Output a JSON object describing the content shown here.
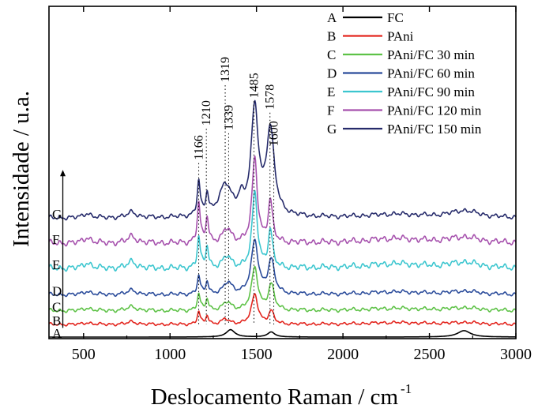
{
  "chart_data": {
    "type": "line",
    "title": "",
    "xlabel": "Deslocamento Raman / cm",
    "xlabel_superscript": "-1",
    "ylabel": "Intensidade / u.a.",
    "xlim": [
      300,
      3000
    ],
    "ylim": [
      0,
      13
    ],
    "x_ticks": [
      500,
      1000,
      1500,
      2000,
      2500,
      3000
    ],
    "grid": false,
    "legend_position": "top-right",
    "peak_labels": [
      {
        "x": 1166,
        "text": "1166",
        "line_top": 7.6
      },
      {
        "x": 1210,
        "text": "1210",
        "line_top": 9.1
      },
      {
        "x": 1319,
        "text": "1319",
        "line_top": 11.0
      },
      {
        "x": 1339,
        "text": "1339",
        "line_top": 8.9
      },
      {
        "x": 1485,
        "text": "1485",
        "line_top": 10.3
      },
      {
        "x": 1578,
        "text": "1578",
        "line_top": 9.8
      },
      {
        "x": 1600,
        "text": "1600",
        "line_top": 8.2
      }
    ],
    "arrow": {
      "x": 380,
      "from": 0.4,
      "to": 7.3
    },
    "series": [
      {
        "letter": "A",
        "name": "FC",
        "color": "#000000",
        "offset": 0.0,
        "wiggle": 0.0,
        "peaks": [
          {
            "x": 1350,
            "amp": 0.32,
            "width": 30
          },
          {
            "x": 1585,
            "amp": 0.22,
            "width": 25
          },
          {
            "x": 2700,
            "amp": 0.28,
            "width": 45
          }
        ]
      },
      {
        "letter": "B",
        "name": "PAni",
        "color": "#e3261f",
        "offset": 0.55,
        "wiggle": 0.04,
        "peaks": [
          {
            "x": 520,
            "amp": 0.08,
            "width": 25
          },
          {
            "x": 780,
            "amp": 0.12,
            "width": 30
          },
          {
            "x": 1166,
            "amp": 0.55,
            "width": 10
          },
          {
            "x": 1215,
            "amp": 0.38,
            "width": 10
          },
          {
            "x": 1320,
            "amp": 0.22,
            "width": 25
          },
          {
            "x": 1490,
            "amp": 1.3,
            "width": 22
          },
          {
            "x": 1585,
            "amp": 0.55,
            "width": 18
          },
          {
            "x": 2300,
            "amp": 0.08,
            "width": 200
          },
          {
            "x": 2700,
            "amp": 0.08,
            "width": 100
          }
        ]
      },
      {
        "letter": "C",
        "name": "PAni/FC 30 min",
        "color": "#5ec247",
        "offset": 1.15,
        "wiggle": 0.05,
        "peaks": [
          {
            "x": 520,
            "amp": 0.12,
            "width": 25
          },
          {
            "x": 780,
            "amp": 0.18,
            "width": 30
          },
          {
            "x": 1166,
            "amp": 0.72,
            "width": 10
          },
          {
            "x": 1215,
            "amp": 0.5,
            "width": 10
          },
          {
            "x": 1330,
            "amp": 0.35,
            "width": 28
          },
          {
            "x": 1490,
            "amp": 1.85,
            "width": 22
          },
          {
            "x": 1585,
            "amp": 1.1,
            "width": 20
          },
          {
            "x": 2300,
            "amp": 0.1,
            "width": 200
          },
          {
            "x": 2700,
            "amp": 0.12,
            "width": 100
          }
        ]
      },
      {
        "letter": "D",
        "name": "PAni/FC 60 min",
        "color": "#2b4c9b",
        "offset": 1.85,
        "wiggle": 0.05,
        "peaks": [
          {
            "x": 520,
            "amp": 0.15,
            "width": 25
          },
          {
            "x": 780,
            "amp": 0.2,
            "width": 30
          },
          {
            "x": 1166,
            "amp": 0.8,
            "width": 10
          },
          {
            "x": 1215,
            "amp": 0.55,
            "width": 10
          },
          {
            "x": 1335,
            "amp": 0.5,
            "width": 30
          },
          {
            "x": 1490,
            "amp": 2.3,
            "width": 24
          },
          {
            "x": 1585,
            "amp": 1.45,
            "width": 22
          },
          {
            "x": 2300,
            "amp": 0.12,
            "width": 200
          },
          {
            "x": 2700,
            "amp": 0.14,
            "width": 100
          }
        ]
      },
      {
        "letter": "E",
        "name": "PAni/FC 90 min",
        "color": "#3cc6cf",
        "offset": 3.0,
        "wiggle": 0.08,
        "peaks": [
          {
            "x": 520,
            "amp": 0.25,
            "width": 25
          },
          {
            "x": 780,
            "amp": 0.3,
            "width": 30
          },
          {
            "x": 1166,
            "amp": 1.35,
            "width": 10
          },
          {
            "x": 1215,
            "amp": 0.95,
            "width": 10
          },
          {
            "x": 1330,
            "amp": 0.5,
            "width": 28
          },
          {
            "x": 1490,
            "amp": 3.3,
            "width": 18
          },
          {
            "x": 1580,
            "amp": 1.6,
            "width": 15
          },
          {
            "x": 2300,
            "amp": 0.2,
            "width": 200
          },
          {
            "x": 2700,
            "amp": 0.25,
            "width": 100
          }
        ]
      },
      {
        "letter": "F",
        "name": "PAni/FC 120 min",
        "color": "#a651ad",
        "offset": 4.1,
        "wiggle": 0.08,
        "peaks": [
          {
            "x": 520,
            "amp": 0.25,
            "width": 25
          },
          {
            "x": 780,
            "amp": 0.3,
            "width": 30
          },
          {
            "x": 1166,
            "amp": 1.75,
            "width": 10
          },
          {
            "x": 1215,
            "amp": 1.1,
            "width": 10
          },
          {
            "x": 1330,
            "amp": 0.6,
            "width": 28
          },
          {
            "x": 1490,
            "amp": 3.7,
            "width": 18
          },
          {
            "x": 1580,
            "amp": 1.8,
            "width": 15
          },
          {
            "x": 2300,
            "amp": 0.2,
            "width": 200
          },
          {
            "x": 2700,
            "amp": 0.25,
            "width": 100
          }
        ]
      },
      {
        "letter": "G",
        "name": "PAni/FC 150 min",
        "color": "#262b6b",
        "offset": 5.2,
        "wiggle": 0.06,
        "peaks": [
          {
            "x": 520,
            "amp": 0.2,
            "width": 25
          },
          {
            "x": 780,
            "amp": 0.25,
            "width": 30
          },
          {
            "x": 1166,
            "amp": 1.5,
            "width": 10
          },
          {
            "x": 1215,
            "amp": 0.9,
            "width": 10
          },
          {
            "x": 1320,
            "amp": 1.35,
            "width": 45
          },
          {
            "x": 1410,
            "amp": 0.6,
            "width": 18
          },
          {
            "x": 1490,
            "amp": 4.65,
            "width": 25
          },
          {
            "x": 1580,
            "amp": 3.7,
            "width": 28
          },
          {
            "x": 2300,
            "amp": 0.15,
            "width": 200
          },
          {
            "x": 2700,
            "amp": 0.3,
            "width": 100
          }
        ]
      }
    ]
  }
}
